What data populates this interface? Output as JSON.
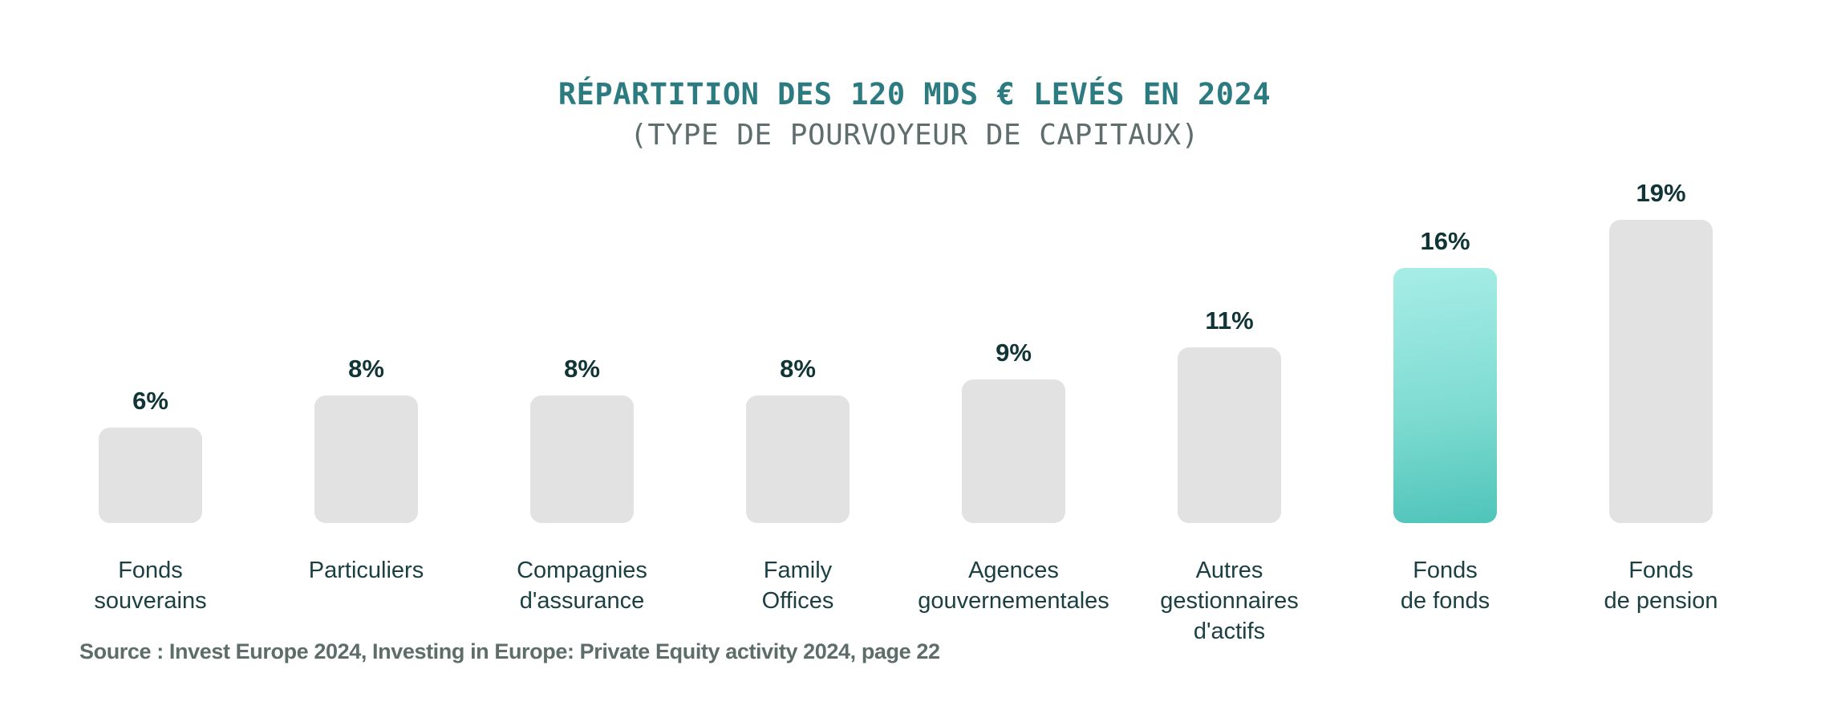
{
  "chart_data": {
    "type": "bar",
    "title": "RÉPARTITION DES 120 MDS € LEVÉS EN 2024",
    "subtitle": "(TYPE DE POURVOYEUR DE CAPITAUX)",
    "unit": "percent",
    "categories": [
      "Fonds souverains",
      "Particuliers",
      "Compagnies d'assurance",
      "Family Offices",
      "Agences gouvernementales",
      "Autres gestionnaires d'actifs",
      "Fonds de fonds",
      "Fonds de pension"
    ],
    "label_lines": [
      [
        "Fonds",
        "souverains"
      ],
      [
        "Particuliers"
      ],
      [
        "Compagnies",
        "d'assurance"
      ],
      [
        "Family",
        "Offices"
      ],
      [
        "Agences",
        "gouvernementales"
      ],
      [
        "Autres",
        "gestionnaires",
        "d'actifs"
      ],
      [
        "Fonds",
        "de fonds"
      ],
      [
        "Fonds",
        "de pension"
      ]
    ],
    "values": [
      6,
      8,
      8,
      8,
      9,
      11,
      16,
      19
    ],
    "value_labels": [
      "6%",
      "8%",
      "8%",
      "8%",
      "9%",
      "11%",
      "16%",
      "19%"
    ],
    "highlighted_index": 6,
    "highlighted_category": "Fonds de fonds",
    "ylim": [
      0,
      20
    ],
    "grid": false,
    "legend": false,
    "colors": {
      "bar_default": "#e2e2e2",
      "bar_highlight_gradient_top": "#a7ede7",
      "bar_highlight_gradient_bottom": "#4fc4b9",
      "title": "#2b7b80",
      "subtitle": "#5f6e6d",
      "value_label": "#113537",
      "category_label": "#1c4042"
    }
  },
  "source": {
    "text": "Source : Invest Europe 2024, Investing in Europe: Private Equity activity 2024, page 22"
  }
}
